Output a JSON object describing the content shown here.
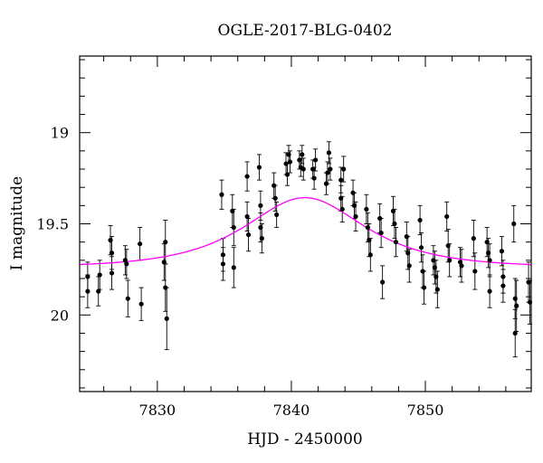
{
  "chart_data": {
    "type": "scatter",
    "title": "OGLE-2017-BLG-0402",
    "xlabel": "HJD - 2450000",
    "ylabel": "I magnitude",
    "xlim": [
      7824.2,
      7857.9
    ],
    "ylim": [
      20.42,
      18.58
    ],
    "y_inverted": true,
    "x_ticks": [
      7830,
      7840,
      7850
    ],
    "x_tick_labels": [
      "7830",
      "7840",
      "7850"
    ],
    "y_ticks": [
      19,
      19.5,
      20
    ],
    "y_tick_labels": [
      "19",
      "19.5",
      "20"
    ],
    "x_minor_step": 2,
    "y_minor_step": 0.1,
    "grid": false,
    "colors": {
      "points": "#000000",
      "model": "#ff00ff"
    },
    "series": [
      {
        "kind": "points_with_errorbars",
        "points": [
          [
            7824.8,
            19.79,
            0.08
          ],
          [
            7824.8,
            19.87,
            0.09
          ],
          [
            7825.6,
            19.87,
            0.08
          ],
          [
            7825.7,
            19.78,
            0.08
          ],
          [
            7826.5,
            19.59,
            0.08
          ],
          [
            7826.6,
            19.66,
            0.09
          ],
          [
            7826.6,
            19.77,
            0.09
          ],
          [
            7827.6,
            19.7,
            0.08
          ],
          [
            7827.7,
            19.72,
            0.08
          ],
          [
            7827.8,
            19.91,
            0.1
          ],
          [
            7828.7,
            19.61,
            0.09
          ],
          [
            7828.8,
            19.94,
            0.09
          ],
          [
            7830.5,
            19.71,
            0.1
          ],
          [
            7830.6,
            19.6,
            0.12
          ],
          [
            7830.6,
            19.85,
            0.13
          ],
          [
            7830.7,
            20.02,
            0.17
          ],
          [
            7834.8,
            19.34,
            0.08
          ],
          [
            7834.9,
            19.67,
            0.09
          ],
          [
            7834.9,
            19.72,
            0.09
          ],
          [
            7835.6,
            19.43,
            0.09
          ],
          [
            7835.7,
            19.52,
            0.1
          ],
          [
            7835.7,
            19.74,
            0.11
          ],
          [
            7836.7,
            19.24,
            0.08
          ],
          [
            7836.7,
            19.46,
            0.08
          ],
          [
            7836.8,
            19.56,
            0.09
          ],
          [
            7837.6,
            19.19,
            0.07
          ],
          [
            7837.7,
            19.4,
            0.08
          ],
          [
            7837.7,
            19.52,
            0.08
          ],
          [
            7837.8,
            19.58,
            0.08
          ],
          [
            7838.7,
            19.29,
            0.07
          ],
          [
            7838.8,
            19.36,
            0.07
          ],
          [
            7838.9,
            19.45,
            0.07
          ],
          [
            7839.6,
            19.17,
            0.06
          ],
          [
            7839.7,
            19.23,
            0.06
          ],
          [
            7839.8,
            19.12,
            0.05
          ],
          [
            7839.9,
            19.16,
            0.06
          ],
          [
            7840.6,
            19.15,
            0.05
          ],
          [
            7840.7,
            19.19,
            0.05
          ],
          [
            7840.8,
            19.12,
            0.05
          ],
          [
            7840.9,
            19.2,
            0.06
          ],
          [
            7841.6,
            19.2,
            0.05
          ],
          [
            7841.7,
            19.25,
            0.06
          ],
          [
            7841.8,
            19.15,
            0.06
          ],
          [
            7842.6,
            19.28,
            0.06
          ],
          [
            7842.7,
            19.22,
            0.06
          ],
          [
            7842.8,
            19.11,
            0.06
          ],
          [
            7842.9,
            19.2,
            0.06
          ],
          [
            7843.7,
            19.26,
            0.07
          ],
          [
            7843.7,
            19.36,
            0.07
          ],
          [
            7843.8,
            19.42,
            0.07
          ],
          [
            7843.9,
            19.2,
            0.07
          ],
          [
            7844.6,
            19.33,
            0.07
          ],
          [
            7844.7,
            19.4,
            0.07
          ],
          [
            7844.8,
            19.46,
            0.08
          ],
          [
            7845.6,
            19.42,
            0.08
          ],
          [
            7845.7,
            19.52,
            0.08
          ],
          [
            7845.8,
            19.59,
            0.09
          ],
          [
            7845.9,
            19.67,
            0.09
          ],
          [
            7846.6,
            19.47,
            0.08
          ],
          [
            7846.7,
            19.55,
            0.08
          ],
          [
            7846.8,
            19.82,
            0.09
          ],
          [
            7847.6,
            19.43,
            0.08
          ],
          [
            7847.7,
            19.5,
            0.08
          ],
          [
            7847.8,
            19.6,
            0.08
          ],
          [
            7848.6,
            19.57,
            0.08
          ],
          [
            7848.7,
            19.66,
            0.09
          ],
          [
            7848.8,
            19.73,
            0.09
          ],
          [
            7849.6,
            19.48,
            0.08
          ],
          [
            7849.7,
            19.63,
            0.08
          ],
          [
            7849.8,
            19.76,
            0.09
          ],
          [
            7849.9,
            19.85,
            0.09
          ],
          [
            7850.6,
            19.7,
            0.08
          ],
          [
            7850.7,
            19.74,
            0.09
          ],
          [
            7850.8,
            19.79,
            0.09
          ],
          [
            7850.9,
            19.86,
            0.1
          ],
          [
            7851.6,
            19.46,
            0.08
          ],
          [
            7851.7,
            19.62,
            0.09
          ],
          [
            7851.8,
            19.7,
            0.09
          ],
          [
            7852.6,
            19.71,
            0.08
          ],
          [
            7852.7,
            19.73,
            0.09
          ],
          [
            7853.6,
            19.58,
            0.1
          ],
          [
            7853.7,
            19.76,
            0.1
          ],
          [
            7854.6,
            19.6,
            0.08
          ],
          [
            7854.7,
            19.66,
            0.08
          ],
          [
            7854.8,
            19.7,
            0.09
          ],
          [
            7854.8,
            19.87,
            0.09
          ],
          [
            7855.7,
            19.65,
            0.08
          ],
          [
            7855.8,
            19.79,
            0.09
          ],
          [
            7855.8,
            19.84,
            0.09
          ],
          [
            7856.6,
            19.5,
            0.1
          ],
          [
            7856.7,
            19.91,
            0.11
          ],
          [
            7856.7,
            20.1,
            0.13
          ],
          [
            7856.8,
            19.95,
            0.14
          ],
          [
            7857.7,
            19.82,
            0.11
          ],
          [
            7857.8,
            19.93,
            0.12
          ]
        ]
      },
      {
        "kind": "model_curve",
        "model": {
          "type": "paczynski",
          "t0": 7841.0,
          "u0": 0.9,
          "tE": 5.7,
          "base_mag": 19.74,
          "fs": 1.0
        },
        "x_range": [
          7824.2,
          7857.9
        ]
      }
    ]
  }
}
